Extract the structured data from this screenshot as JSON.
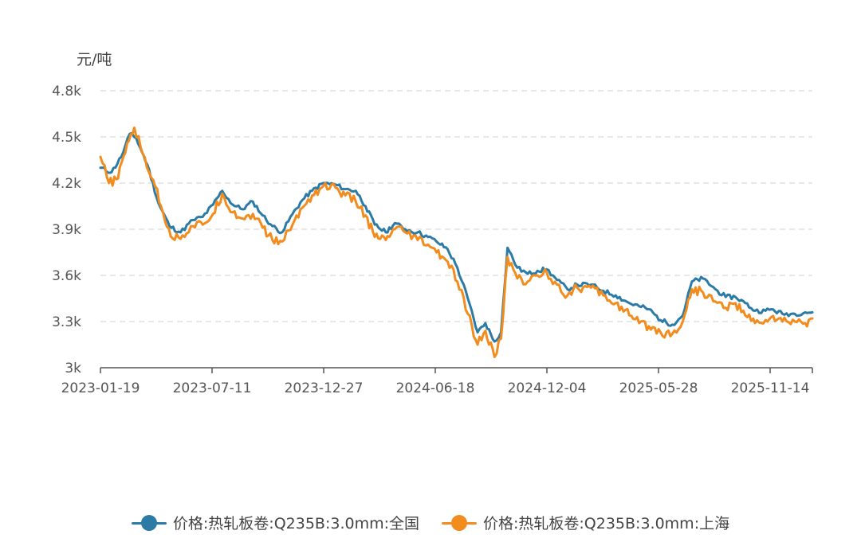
{
  "chart_data": {
    "type": "line",
    "unit_label": "元/吨",
    "ylim": [
      3000,
      4800
    ],
    "yticks": [
      3000,
      3300,
      3600,
      3900,
      4200,
      4500,
      4800
    ],
    "ytick_labels": [
      "3k",
      "3.3k",
      "3.6k",
      "3.9k",
      "4.2k",
      "4.5k",
      "4.8k"
    ],
    "xtick_labels": [
      "2023-01-19",
      "2023-07-11",
      "2023-12-27",
      "2024-06-18",
      "2024-12-04",
      "2025-05-28",
      "2025-11-14"
    ],
    "x_range": [
      "2023-01-19",
      "2026-01-16"
    ],
    "grid": true,
    "legend_position": "bottom",
    "series": [
      {
        "name": "价格:热轧板卷:Q235B:3.0mm:全国",
        "color": "#2b7ba6",
        "points": [
          [
            "2023-01-19",
            4300
          ],
          [
            "2023-02-05",
            4270
          ],
          [
            "2023-02-20",
            4370
          ],
          [
            "2023-03-05",
            4520
          ],
          [
            "2023-03-15",
            4490
          ],
          [
            "2023-04-01",
            4320
          ],
          [
            "2023-04-18",
            4070
          ],
          [
            "2023-05-05",
            3920
          ],
          [
            "2023-05-22",
            3880
          ],
          [
            "2023-06-10",
            3960
          ],
          [
            "2023-06-25",
            3980
          ],
          [
            "2023-07-11",
            4060
          ],
          [
            "2023-07-25",
            4150
          ],
          [
            "2023-08-10",
            4060
          ],
          [
            "2023-08-25",
            4030
          ],
          [
            "2023-09-10",
            4080
          ],
          [
            "2023-09-25",
            3990
          ],
          [
            "2023-10-10",
            3920
          ],
          [
            "2023-10-25",
            3880
          ],
          [
            "2023-11-10",
            4000
          ],
          [
            "2023-11-25",
            4090
          ],
          [
            "2023-12-10",
            4150
          ],
          [
            "2023-12-27",
            4200
          ],
          [
            "2024-01-15",
            4190
          ],
          [
            "2024-01-30",
            4160
          ],
          [
            "2024-02-15",
            4150
          ],
          [
            "2024-03-01",
            4050
          ],
          [
            "2024-03-15",
            3930
          ],
          [
            "2024-04-01",
            3880
          ],
          [
            "2024-04-15",
            3940
          ],
          [
            "2024-05-01",
            3900
          ],
          [
            "2024-05-20",
            3880
          ],
          [
            "2024-06-05",
            3850
          ],
          [
            "2024-06-18",
            3820
          ],
          [
            "2024-07-05",
            3770
          ],
          [
            "2024-07-20",
            3650
          ],
          [
            "2024-08-05",
            3450
          ],
          [
            "2024-08-20",
            3230
          ],
          [
            "2024-09-01",
            3290
          ],
          [
            "2024-09-15",
            3170
          ],
          [
            "2024-09-25",
            3230
          ],
          [
            "2024-10-05",
            3780
          ],
          [
            "2024-10-20",
            3650
          ],
          [
            "2024-11-05",
            3610
          ],
          [
            "2024-11-20",
            3630
          ],
          [
            "2024-12-04",
            3640
          ],
          [
            "2024-12-20",
            3570
          ],
          [
            "2025-01-05",
            3510
          ],
          [
            "2025-01-20",
            3540
          ],
          [
            "2025-02-10",
            3540
          ],
          [
            "2025-03-01",
            3500
          ],
          [
            "2025-03-20",
            3470
          ],
          [
            "2025-04-10",
            3420
          ],
          [
            "2025-04-25",
            3400
          ],
          [
            "2025-05-10",
            3380
          ],
          [
            "2025-05-28",
            3310
          ],
          [
            "2025-06-15",
            3280
          ],
          [
            "2025-07-01",
            3340
          ],
          [
            "2025-07-15",
            3560
          ],
          [
            "2025-08-01",
            3580
          ],
          [
            "2025-08-20",
            3510
          ],
          [
            "2025-09-05",
            3460
          ],
          [
            "2025-09-20",
            3460
          ],
          [
            "2025-10-05",
            3420
          ],
          [
            "2025-10-20",
            3370
          ],
          [
            "2025-11-05",
            3370
          ],
          [
            "2025-11-14",
            3380
          ],
          [
            "2025-12-01",
            3350
          ],
          [
            "2025-12-20",
            3350
          ],
          [
            "2026-01-05",
            3360
          ],
          [
            "2026-01-16",
            3360
          ]
        ]
      },
      {
        "name": "价格:热轧板卷:Q235B:3.0mm:上海",
        "color": "#f28c1e",
        "points": [
          [
            "2023-01-19",
            4370
          ],
          [
            "2023-02-01",
            4200
          ],
          [
            "2023-02-15",
            4230
          ],
          [
            "2023-03-01",
            4460
          ],
          [
            "2023-03-12",
            4560
          ],
          [
            "2023-03-25",
            4390
          ],
          [
            "2023-04-10",
            4220
          ],
          [
            "2023-04-25",
            4010
          ],
          [
            "2023-05-10",
            3840
          ],
          [
            "2023-05-25",
            3860
          ],
          [
            "2023-06-10",
            3920
          ],
          [
            "2023-06-25",
            3930
          ],
          [
            "2023-07-11",
            4000
          ],
          [
            "2023-07-25",
            4130
          ],
          [
            "2023-08-10",
            4010
          ],
          [
            "2023-08-25",
            3970
          ],
          [
            "2023-09-10",
            4000
          ],
          [
            "2023-09-25",
            3910
          ],
          [
            "2023-10-10",
            3830
          ],
          [
            "2023-10-25",
            3820
          ],
          [
            "2023-11-10",
            3930
          ],
          [
            "2023-11-25",
            4040
          ],
          [
            "2023-12-10",
            4120
          ],
          [
            "2023-12-27",
            4180
          ],
          [
            "2024-01-15",
            4170
          ],
          [
            "2024-01-30",
            4120
          ],
          [
            "2024-02-15",
            4080
          ],
          [
            "2024-03-01",
            3990
          ],
          [
            "2024-03-15",
            3850
          ],
          [
            "2024-04-01",
            3830
          ],
          [
            "2024-04-15",
            3900
          ],
          [
            "2024-05-01",
            3880
          ],
          [
            "2024-05-20",
            3830
          ],
          [
            "2024-06-05",
            3800
          ],
          [
            "2024-06-18",
            3750
          ],
          [
            "2024-07-05",
            3690
          ],
          [
            "2024-07-20",
            3560
          ],
          [
            "2024-08-05",
            3350
          ],
          [
            "2024-08-20",
            3150
          ],
          [
            "2024-09-01",
            3240
          ],
          [
            "2024-09-15",
            3070
          ],
          [
            "2024-09-25",
            3190
          ],
          [
            "2024-10-05",
            3720
          ],
          [
            "2024-10-20",
            3580
          ],
          [
            "2024-11-05",
            3560
          ],
          [
            "2024-11-20",
            3600
          ],
          [
            "2024-12-04",
            3620
          ],
          [
            "2024-12-20",
            3540
          ],
          [
            "2025-01-05",
            3470
          ],
          [
            "2025-01-20",
            3520
          ],
          [
            "2025-02-10",
            3520
          ],
          [
            "2025-03-01",
            3470
          ],
          [
            "2025-03-20",
            3420
          ],
          [
            "2025-04-10",
            3340
          ],
          [
            "2025-04-25",
            3290
          ],
          [
            "2025-05-10",
            3270
          ],
          [
            "2025-05-28",
            3230
          ],
          [
            "2025-06-15",
            3220
          ],
          [
            "2025-07-01",
            3300
          ],
          [
            "2025-07-15",
            3510
          ],
          [
            "2025-08-01",
            3490
          ],
          [
            "2025-08-20",
            3430
          ],
          [
            "2025-09-05",
            3390
          ],
          [
            "2025-09-20",
            3420
          ],
          [
            "2025-10-05",
            3340
          ],
          [
            "2025-10-20",
            3290
          ],
          [
            "2025-11-05",
            3310
          ],
          [
            "2025-11-14",
            3330
          ],
          [
            "2025-12-01",
            3300
          ],
          [
            "2025-12-20",
            3300
          ],
          [
            "2026-01-05",
            3290
          ],
          [
            "2026-01-16",
            3320
          ]
        ]
      }
    ]
  }
}
